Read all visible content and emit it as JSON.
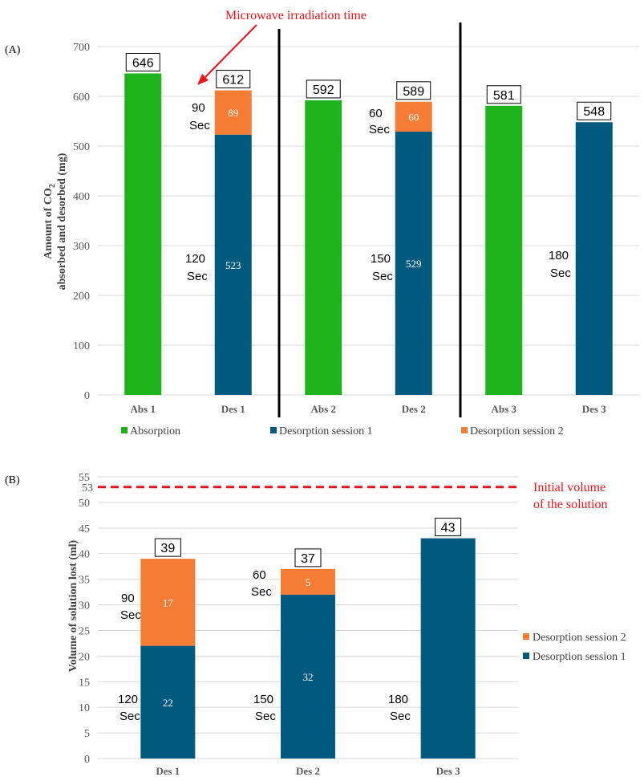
{
  "colors": {
    "absorption": "#1db31d",
    "des1": "#005a7e",
    "des2": "#f47c34",
    "grid": "#d9d9d9",
    "annotation": "#e8141b"
  },
  "chart_data": [
    {
      "type": "bar",
      "stacked": true,
      "panel_label": "(A)",
      "categories": [
        "Abs 1",
        "Des 1",
        "Abs 2",
        "Des 2",
        "Abs 3",
        "Des 3"
      ],
      "series": [
        {
          "name": "Absorption",
          "values": [
            646,
            0,
            592,
            0,
            581,
            0
          ]
        },
        {
          "name": "Desorption session 1",
          "values": [
            0,
            523,
            0,
            529,
            0,
            548
          ]
        },
        {
          "name": "Desorption session 2",
          "values": [
            0,
            89,
            0,
            60,
            0,
            0
          ]
        }
      ],
      "totals": [
        "646",
        "612",
        "592",
        "589",
        "581",
        "548"
      ],
      "inbar_labels": {
        "des1": [
          "",
          "523",
          "",
          "529",
          "",
          ""
        ],
        "des2": [
          "",
          "89",
          "",
          "60",
          "",
          ""
        ]
      },
      "time_labels": [
        {
          "lines": [
            "90",
            "Sec"
          ]
        },
        {
          "lines": [
            "120",
            "Sec"
          ]
        },
        {
          "lines": [
            "60",
            "Sec"
          ]
        },
        {
          "lines": [
            "150",
            "Sec"
          ]
        },
        {
          "lines": [
            "180",
            "Sec"
          ]
        }
      ],
      "ylabel_line1": "Amount of CO",
      "ylabel_sub": "2",
      "ylabel_line2": "absorbed and desorbed (mg)",
      "ylim": [
        0,
        700
      ],
      "yticks": [
        "0",
        "100",
        "200",
        "300",
        "400",
        "500",
        "600",
        "700"
      ],
      "annotation": "Microwave irradiation time",
      "legend": [
        "Absorption",
        "Desorption session 1",
        "Desorption session 2"
      ]
    },
    {
      "type": "bar",
      "stacked": true,
      "panel_label": "(B)",
      "categories": [
        "Des 1",
        "Des 2",
        "Des 3"
      ],
      "series": [
        {
          "name": "Desorption session 1",
          "values": [
            22,
            32,
            43
          ]
        },
        {
          "name": "Desorption session 2",
          "values": [
            17,
            5,
            0
          ]
        }
      ],
      "totals": [
        "39",
        "37",
        "43"
      ],
      "inbar_labels": {
        "des1": [
          "22",
          "32",
          ""
        ],
        "des2": [
          "17",
          "5",
          ""
        ]
      },
      "time_labels": [
        {
          "lines": [
            "90",
            "Sec"
          ]
        },
        {
          "lines": [
            "120",
            "Sec"
          ]
        },
        {
          "lines": [
            "60",
            "Sec"
          ]
        },
        {
          "lines": [
            "150",
            "Sec"
          ]
        },
        {
          "lines": [
            "180",
            "Sec"
          ]
        }
      ],
      "ylabel": "Volume of solution lost (ml)",
      "ylim": [
        0,
        55
      ],
      "yticks": [
        "0",
        "5",
        "10",
        "15",
        "20",
        "25",
        "30",
        "35",
        "40",
        "45",
        "50",
        "55"
      ],
      "reference_value": 53,
      "reference_tick": "53",
      "reference_label": [
        "Initial volume",
        "of the solution"
      ],
      "legend": [
        "Desorption session 2",
        "Desorption session 1"
      ]
    }
  ]
}
